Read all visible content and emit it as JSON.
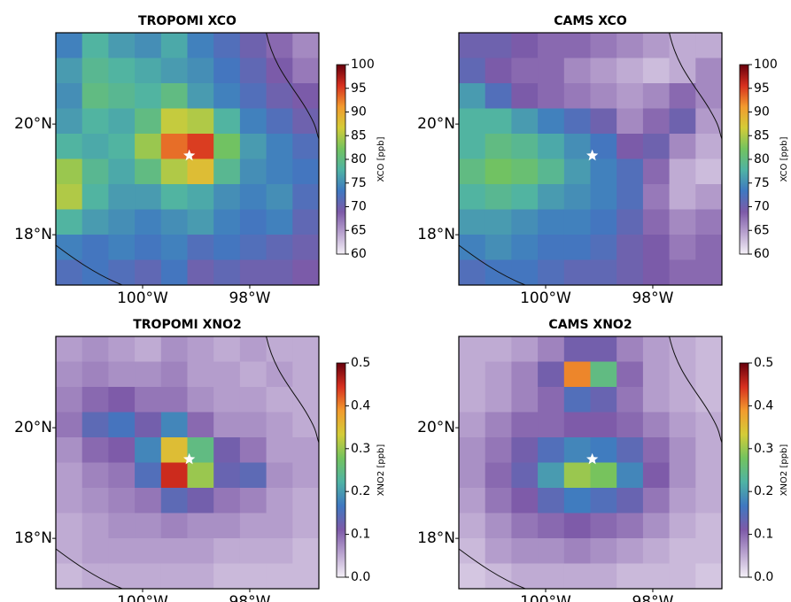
{
  "chart_data": [
    {
      "type": "heatmap",
      "title": "TROPOMI XCO",
      "xlim": [
        -101.62,
        -96.71
      ],
      "ylim": [
        17.09,
        21.65
      ],
      "xticks": [
        {
          "value": -100,
          "label": "100°W"
        },
        {
          "value": -98,
          "label": "98°W"
        }
      ],
      "yticks": [
        {
          "value": 18,
          "label": "18°N"
        },
        {
          "value": 20,
          "label": "20°N"
        }
      ],
      "colormap": [
        "#f4f0f7",
        "#b9a3cf",
        "#7d5aa8",
        "#3f78c1",
        "#4fb3a4",
        "#73c35f",
        "#d4cc38",
        "#f29b2e",
        "#d7301f",
        "#67000d"
      ],
      "colorbar": {
        "label": "XCO [ppb]",
        "lim": [
          60,
          100
        ],
        "ticks": [
          60,
          65,
          70,
          75,
          80,
          85,
          90,
          95,
          100
        ]
      },
      "marker": {
        "lon": -99.13,
        "lat": 19.43,
        "color": "#ffffff"
      },
      "values": [
        [
          74,
          78,
          76,
          75,
          77,
          74,
          72,
          70,
          68,
          66
        ],
        [
          76,
          79,
          78,
          77,
          76,
          75,
          73,
          71,
          69,
          67
        ],
        [
          75,
          80,
          79,
          78,
          80,
          76,
          74,
          72,
          70,
          69
        ],
        [
          76,
          78,
          77,
          80,
          86,
          85,
          78,
          74,
          72,
          70
        ],
        [
          78,
          77,
          78,
          84,
          93,
          95,
          82,
          76,
          74,
          72
        ],
        [
          84,
          79,
          77,
          80,
          85,
          88,
          79,
          75,
          74,
          73
        ],
        [
          85,
          78,
          76,
          76,
          78,
          77,
          75,
          74,
          75,
          72
        ],
        [
          78,
          76,
          75,
          74,
          75,
          76,
          74,
          73,
          74,
          71
        ],
        [
          74,
          73,
          74,
          73,
          74,
          72,
          73,
          72,
          71,
          70
        ],
        [
          72,
          73,
          72,
          71,
          73,
          70,
          71,
          70,
          70,
          69
        ]
      ]
    },
    {
      "type": "heatmap",
      "title": "CAMS XCO",
      "xlim": [
        -101.62,
        -96.71
      ],
      "ylim": [
        17.09,
        21.65
      ],
      "xticks": [
        {
          "value": -100,
          "label": "100°W"
        },
        {
          "value": -98,
          "label": "98°W"
        }
      ],
      "yticks": [
        {
          "value": 18,
          "label": "18°N"
        },
        {
          "value": 20,
          "label": "20°N"
        }
      ],
      "colormap": [
        "#f4f0f7",
        "#b9a3cf",
        "#7d5aa8",
        "#3f78c1",
        "#4fb3a4",
        "#73c35f",
        "#d4cc38",
        "#f29b2e",
        "#d7301f",
        "#67000d"
      ],
      "colorbar": {
        "label": "XCO [ppb]",
        "lim": [
          60,
          100
        ],
        "ticks": [
          60,
          65,
          70,
          75,
          80,
          85,
          90,
          95,
          100
        ]
      },
      "marker": {
        "lon": -99.13,
        "lat": 19.43,
        "color": "#ffffff"
      },
      "values": [
        [
          70,
          70,
          69,
          68,
          68,
          67,
          66,
          65,
          64,
          64
        ],
        [
          71,
          69,
          68,
          68,
          66,
          65,
          64,
          63,
          64,
          66
        ],
        [
          76,
          72,
          69,
          68,
          67,
          66,
          65,
          66,
          68,
          66
        ],
        [
          78,
          78,
          76,
          74,
          72,
          70,
          66,
          68,
          70,
          65
        ],
        [
          78,
          80,
          79,
          77,
          75,
          73,
          69,
          70,
          66,
          64
        ],
        [
          80,
          82,
          81,
          79,
          76,
          74,
          72,
          68,
          64,
          63
        ],
        [
          78,
          79,
          78,
          76,
          75,
          74,
          72,
          67,
          64,
          65
        ],
        [
          76,
          76,
          75,
          74,
          74,
          73,
          71,
          68,
          66,
          67
        ],
        [
          74,
          75,
          74,
          73,
          73,
          72,
          70,
          69,
          67,
          68
        ],
        [
          72,
          73,
          73,
          72,
          71,
          71,
          70,
          69,
          68,
          68
        ]
      ]
    },
    {
      "type": "heatmap",
      "title": "TROPOMI XNO2",
      "xlim": [
        -101.62,
        -96.71
      ],
      "ylim": [
        17.09,
        21.65
      ],
      "xticks": [
        {
          "value": -100,
          "label": "100°W"
        },
        {
          "value": -98,
          "label": "98°W"
        }
      ],
      "yticks": [
        {
          "value": 18,
          "label": "18°N"
        },
        {
          "value": 20,
          "label": "20°N"
        }
      ],
      "colormap": [
        "#f4f0f7",
        "#b9a3cf",
        "#7d5aa8",
        "#3f78c1",
        "#4fb3a4",
        "#73c35f",
        "#d4cc38",
        "#f29b2e",
        "#d7301f",
        "#67000d"
      ],
      "colorbar": {
        "label": "XNO2 [ppb]",
        "lim": [
          0,
          0.5
        ],
        "ticks": [
          {
            "value": 0,
            "label": "0.0"
          },
          0.1,
          0.2,
          0.3,
          0.4,
          0.5
        ]
      },
      "marker": {
        "lon": -99.13,
        "lat": 19.43,
        "color": "#ffffff"
      },
      "values": [
        [
          0.06,
          0.07,
          0.06,
          0.05,
          0.07,
          0.06,
          0.05,
          0.06,
          0.05,
          0.05
        ],
        [
          0.07,
          0.08,
          0.07,
          0.07,
          0.08,
          0.06,
          0.06,
          0.05,
          0.06,
          0.05
        ],
        [
          0.08,
          0.1,
          0.11,
          0.09,
          0.09,
          0.07,
          0.06,
          0.06,
          0.05,
          0.05
        ],
        [
          0.09,
          0.14,
          0.16,
          0.12,
          0.18,
          0.1,
          0.07,
          0.07,
          0.06,
          0.05
        ],
        [
          0.07,
          0.1,
          0.11,
          0.18,
          0.35,
          0.25,
          0.12,
          0.09,
          0.06,
          0.06
        ],
        [
          0.06,
          0.08,
          0.09,
          0.15,
          0.45,
          0.3,
          0.13,
          0.14,
          0.07,
          0.06
        ],
        [
          0.06,
          0.07,
          0.08,
          0.09,
          0.14,
          0.12,
          0.09,
          0.08,
          0.06,
          0.05
        ],
        [
          0.05,
          0.06,
          0.07,
          0.07,
          0.08,
          0.07,
          0.07,
          0.06,
          0.06,
          0.05
        ],
        [
          0.05,
          0.06,
          0.06,
          0.06,
          0.06,
          0.06,
          0.05,
          0.05,
          0.05,
          0.04
        ],
        [
          0.04,
          0.05,
          0.05,
          0.05,
          0.05,
          0.05,
          0.04,
          0.04,
          0.04,
          0.04
        ]
      ]
    },
    {
      "type": "heatmap",
      "title": "CAMS XNO2",
      "xlim": [
        -101.62,
        -96.71
      ],
      "ylim": [
        17.09,
        21.65
      ],
      "xticks": [
        {
          "value": -100,
          "label": "100°W"
        },
        {
          "value": -98,
          "label": "98°W"
        }
      ],
      "yticks": [
        {
          "value": 18,
          "label": "18°N"
        },
        {
          "value": 20,
          "label": "20°N"
        }
      ],
      "colormap": [
        "#f4f0f7",
        "#b9a3cf",
        "#7d5aa8",
        "#3f78c1",
        "#4fb3a4",
        "#73c35f",
        "#d4cc38",
        "#f29b2e",
        "#d7301f",
        "#67000d"
      ],
      "colorbar": {
        "label": "XNO2 [ppb]",
        "lim": [
          0,
          0.5
        ],
        "ticks": [
          {
            "value": 0,
            "label": "0.0"
          },
          0.1,
          0.2,
          0.3,
          0.4,
          0.5
        ]
      },
      "marker": {
        "lon": -99.13,
        "lat": 19.43,
        "color": "#ffffff"
      },
      "values": [
        [
          0.05,
          0.05,
          0.06,
          0.08,
          0.12,
          0.12,
          0.08,
          0.06,
          0.05,
          0.04
        ],
        [
          0.05,
          0.06,
          0.08,
          0.12,
          0.4,
          0.25,
          0.1,
          0.06,
          0.05,
          0.04
        ],
        [
          0.05,
          0.06,
          0.08,
          0.1,
          0.15,
          0.13,
          0.09,
          0.06,
          0.05,
          0.04
        ],
        [
          0.06,
          0.08,
          0.1,
          0.1,
          0.11,
          0.11,
          0.1,
          0.08,
          0.06,
          0.05
        ],
        [
          0.07,
          0.09,
          0.12,
          0.15,
          0.18,
          0.17,
          0.14,
          0.1,
          0.07,
          0.05
        ],
        [
          0.07,
          0.1,
          0.13,
          0.2,
          0.3,
          0.28,
          0.18,
          0.11,
          0.07,
          0.05
        ],
        [
          0.06,
          0.09,
          0.11,
          0.14,
          0.17,
          0.15,
          0.13,
          0.09,
          0.06,
          0.05
        ],
        [
          0.05,
          0.07,
          0.09,
          0.1,
          0.11,
          0.1,
          0.09,
          0.07,
          0.05,
          0.04
        ],
        [
          0.04,
          0.06,
          0.07,
          0.07,
          0.08,
          0.07,
          0.06,
          0.05,
          0.04,
          0.04
        ],
        [
          0.03,
          0.04,
          0.05,
          0.05,
          0.05,
          0.05,
          0.04,
          0.04,
          0.04,
          0.03
        ]
      ]
    }
  ]
}
